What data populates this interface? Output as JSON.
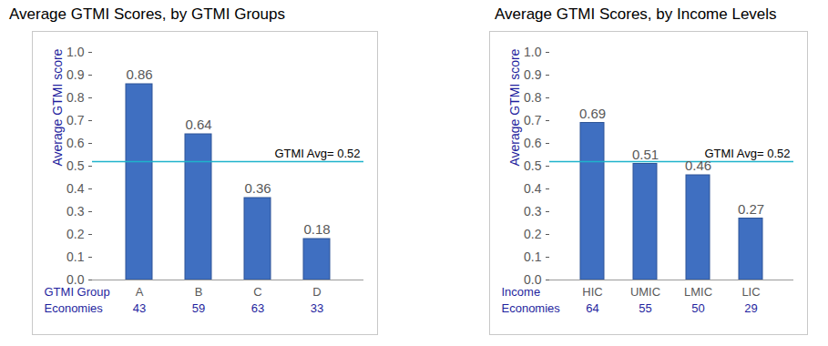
{
  "chart_data": [
    {
      "type": "bar",
      "title": "Average GTMI Scores, by GTMI Groups",
      "x_label": "GTMI Group",
      "y_label": "Average GTMI score",
      "categories": [
        "A",
        "B",
        "C",
        "D"
      ],
      "values": [
        0.86,
        0.64,
        0.36,
        0.18
      ],
      "counts_label": "Economies",
      "counts": [
        43,
        59,
        63,
        33
      ],
      "color": "#3f6fc1",
      "ylim": [
        0,
        1
      ],
      "yticks": [
        {
          "value": 0,
          "label": "0.0"
        },
        0.1,
        0.2,
        0.3,
        0.4,
        0.5,
        0.6,
        0.7,
        0.8,
        0.9,
        {
          "value": 1,
          "label": "1.0"
        }
      ],
      "data_labels": true,
      "grid": false,
      "reference_line": {
        "value": 0.52,
        "label": "GTMI Avg= 0.52",
        "color": "#1fb3cc"
      }
    },
    {
      "type": "bar",
      "title": "Average GTMI Scores, by Income Levels",
      "x_label": "Income",
      "y_label": "Average GTMI score",
      "categories": [
        "HIC",
        "UMIC",
        "LMIC",
        "LIC"
      ],
      "values": [
        0.69,
        0.51,
        0.46,
        0.27
      ],
      "counts_label": "Economies",
      "counts": [
        64,
        55,
        50,
        29
      ],
      "color": "#3f6fc1",
      "ylim": [
        0,
        1
      ],
      "yticks": [
        {
          "value": 0,
          "label": "0.0"
        },
        0.1,
        0.2,
        0.3,
        0.4,
        0.5,
        0.6,
        0.7,
        0.8,
        0.9,
        {
          "value": 1,
          "label": "1.0"
        }
      ],
      "data_labels": true,
      "grid": false,
      "reference_line": {
        "value": 0.52,
        "label": "GTMI Avg= 0.52",
        "color": "#1fb3cc"
      }
    }
  ]
}
